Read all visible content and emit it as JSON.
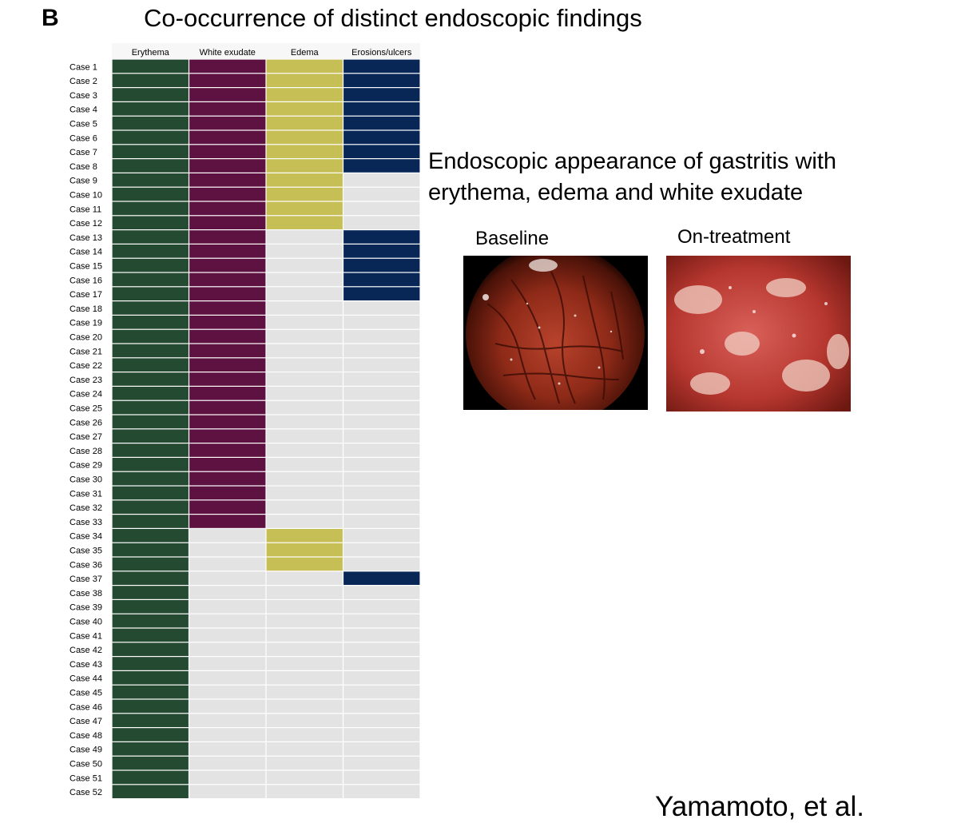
{
  "panel_letter": "B",
  "side": {
    "title_line1": "Endoscopic appearance of gastritis with",
    "title_line2": "erythema, edema and white exudate",
    "photos": [
      {
        "label": "Baseline",
        "icon": "endoscopy-baseline-image"
      },
      {
        "label": "On-treatment",
        "icon": "endoscopy-on-treatment-image"
      }
    ]
  },
  "credit": "Yamamoto, et al.",
  "colors": {
    "erythema": "#254a32",
    "white_exudate": "#5e1241",
    "edema": "#c6bf55",
    "erosions": "#082756",
    "absent": "#e3e3e3",
    "grid": "#ffffff"
  },
  "chart_data": {
    "type": "heatmap",
    "title": "Co-occurrence of distinct endoscopic findings",
    "columns": [
      "Erythema",
      "White exudate",
      "Edema",
      "Erosions/ulcers"
    ],
    "rows": [
      "Case 1",
      "Case 2",
      "Case 3",
      "Case 4",
      "Case 5",
      "Case 6",
      "Case 7",
      "Case 8",
      "Case 9",
      "Case 10",
      "Case 11",
      "Case 12",
      "Case 13",
      "Case 14",
      "Case 15",
      "Case 16",
      "Case 17",
      "Case 18",
      "Case 19",
      "Case 20",
      "Case 21",
      "Case 22",
      "Case 23",
      "Case 24",
      "Case 25",
      "Case 26",
      "Case 27",
      "Case 28",
      "Case 29",
      "Case 30",
      "Case 31",
      "Case 32",
      "Case 33",
      "Case 34",
      "Case 35",
      "Case 36",
      "Case 37",
      "Case 38",
      "Case 39",
      "Case 40",
      "Case 41",
      "Case 42",
      "Case 43",
      "Case 44",
      "Case 45",
      "Case 46",
      "Case 47",
      "Case 48",
      "Case 49",
      "Case 50",
      "Case 51",
      "Case 52"
    ],
    "values": [
      [
        1,
        1,
        1,
        1
      ],
      [
        1,
        1,
        1,
        1
      ],
      [
        1,
        1,
        1,
        1
      ],
      [
        1,
        1,
        1,
        1
      ],
      [
        1,
        1,
        1,
        1
      ],
      [
        1,
        1,
        1,
        1
      ],
      [
        1,
        1,
        1,
        1
      ],
      [
        1,
        1,
        1,
        1
      ],
      [
        1,
        1,
        1,
        0
      ],
      [
        1,
        1,
        1,
        0
      ],
      [
        1,
        1,
        1,
        0
      ],
      [
        1,
        1,
        1,
        0
      ],
      [
        1,
        1,
        0,
        1
      ],
      [
        1,
        1,
        0,
        1
      ],
      [
        1,
        1,
        0,
        1
      ],
      [
        1,
        1,
        0,
        1
      ],
      [
        1,
        1,
        0,
        1
      ],
      [
        1,
        1,
        0,
        0
      ],
      [
        1,
        1,
        0,
        0
      ],
      [
        1,
        1,
        0,
        0
      ],
      [
        1,
        1,
        0,
        0
      ],
      [
        1,
        1,
        0,
        0
      ],
      [
        1,
        1,
        0,
        0
      ],
      [
        1,
        1,
        0,
        0
      ],
      [
        1,
        1,
        0,
        0
      ],
      [
        1,
        1,
        0,
        0
      ],
      [
        1,
        1,
        0,
        0
      ],
      [
        1,
        1,
        0,
        0
      ],
      [
        1,
        1,
        0,
        0
      ],
      [
        1,
        1,
        0,
        0
      ],
      [
        1,
        1,
        0,
        0
      ],
      [
        1,
        1,
        0,
        0
      ],
      [
        1,
        1,
        0,
        0
      ],
      [
        1,
        0,
        1,
        0
      ],
      [
        1,
        0,
        1,
        0
      ],
      [
        1,
        0,
        1,
        0
      ],
      [
        1,
        0,
        0,
        1
      ],
      [
        1,
        0,
        0,
        0
      ],
      [
        1,
        0,
        0,
        0
      ],
      [
        1,
        0,
        0,
        0
      ],
      [
        1,
        0,
        0,
        0
      ],
      [
        1,
        0,
        0,
        0
      ],
      [
        1,
        0,
        0,
        0
      ],
      [
        1,
        0,
        0,
        0
      ],
      [
        1,
        0,
        0,
        0
      ],
      [
        1,
        0,
        0,
        0
      ],
      [
        1,
        0,
        0,
        0
      ],
      [
        1,
        0,
        0,
        0
      ],
      [
        1,
        0,
        0,
        0
      ],
      [
        1,
        0,
        0,
        0
      ],
      [
        1,
        0,
        0,
        0
      ],
      [
        1,
        0,
        0,
        0
      ]
    ],
    "legend": "none",
    "grid": true
  }
}
